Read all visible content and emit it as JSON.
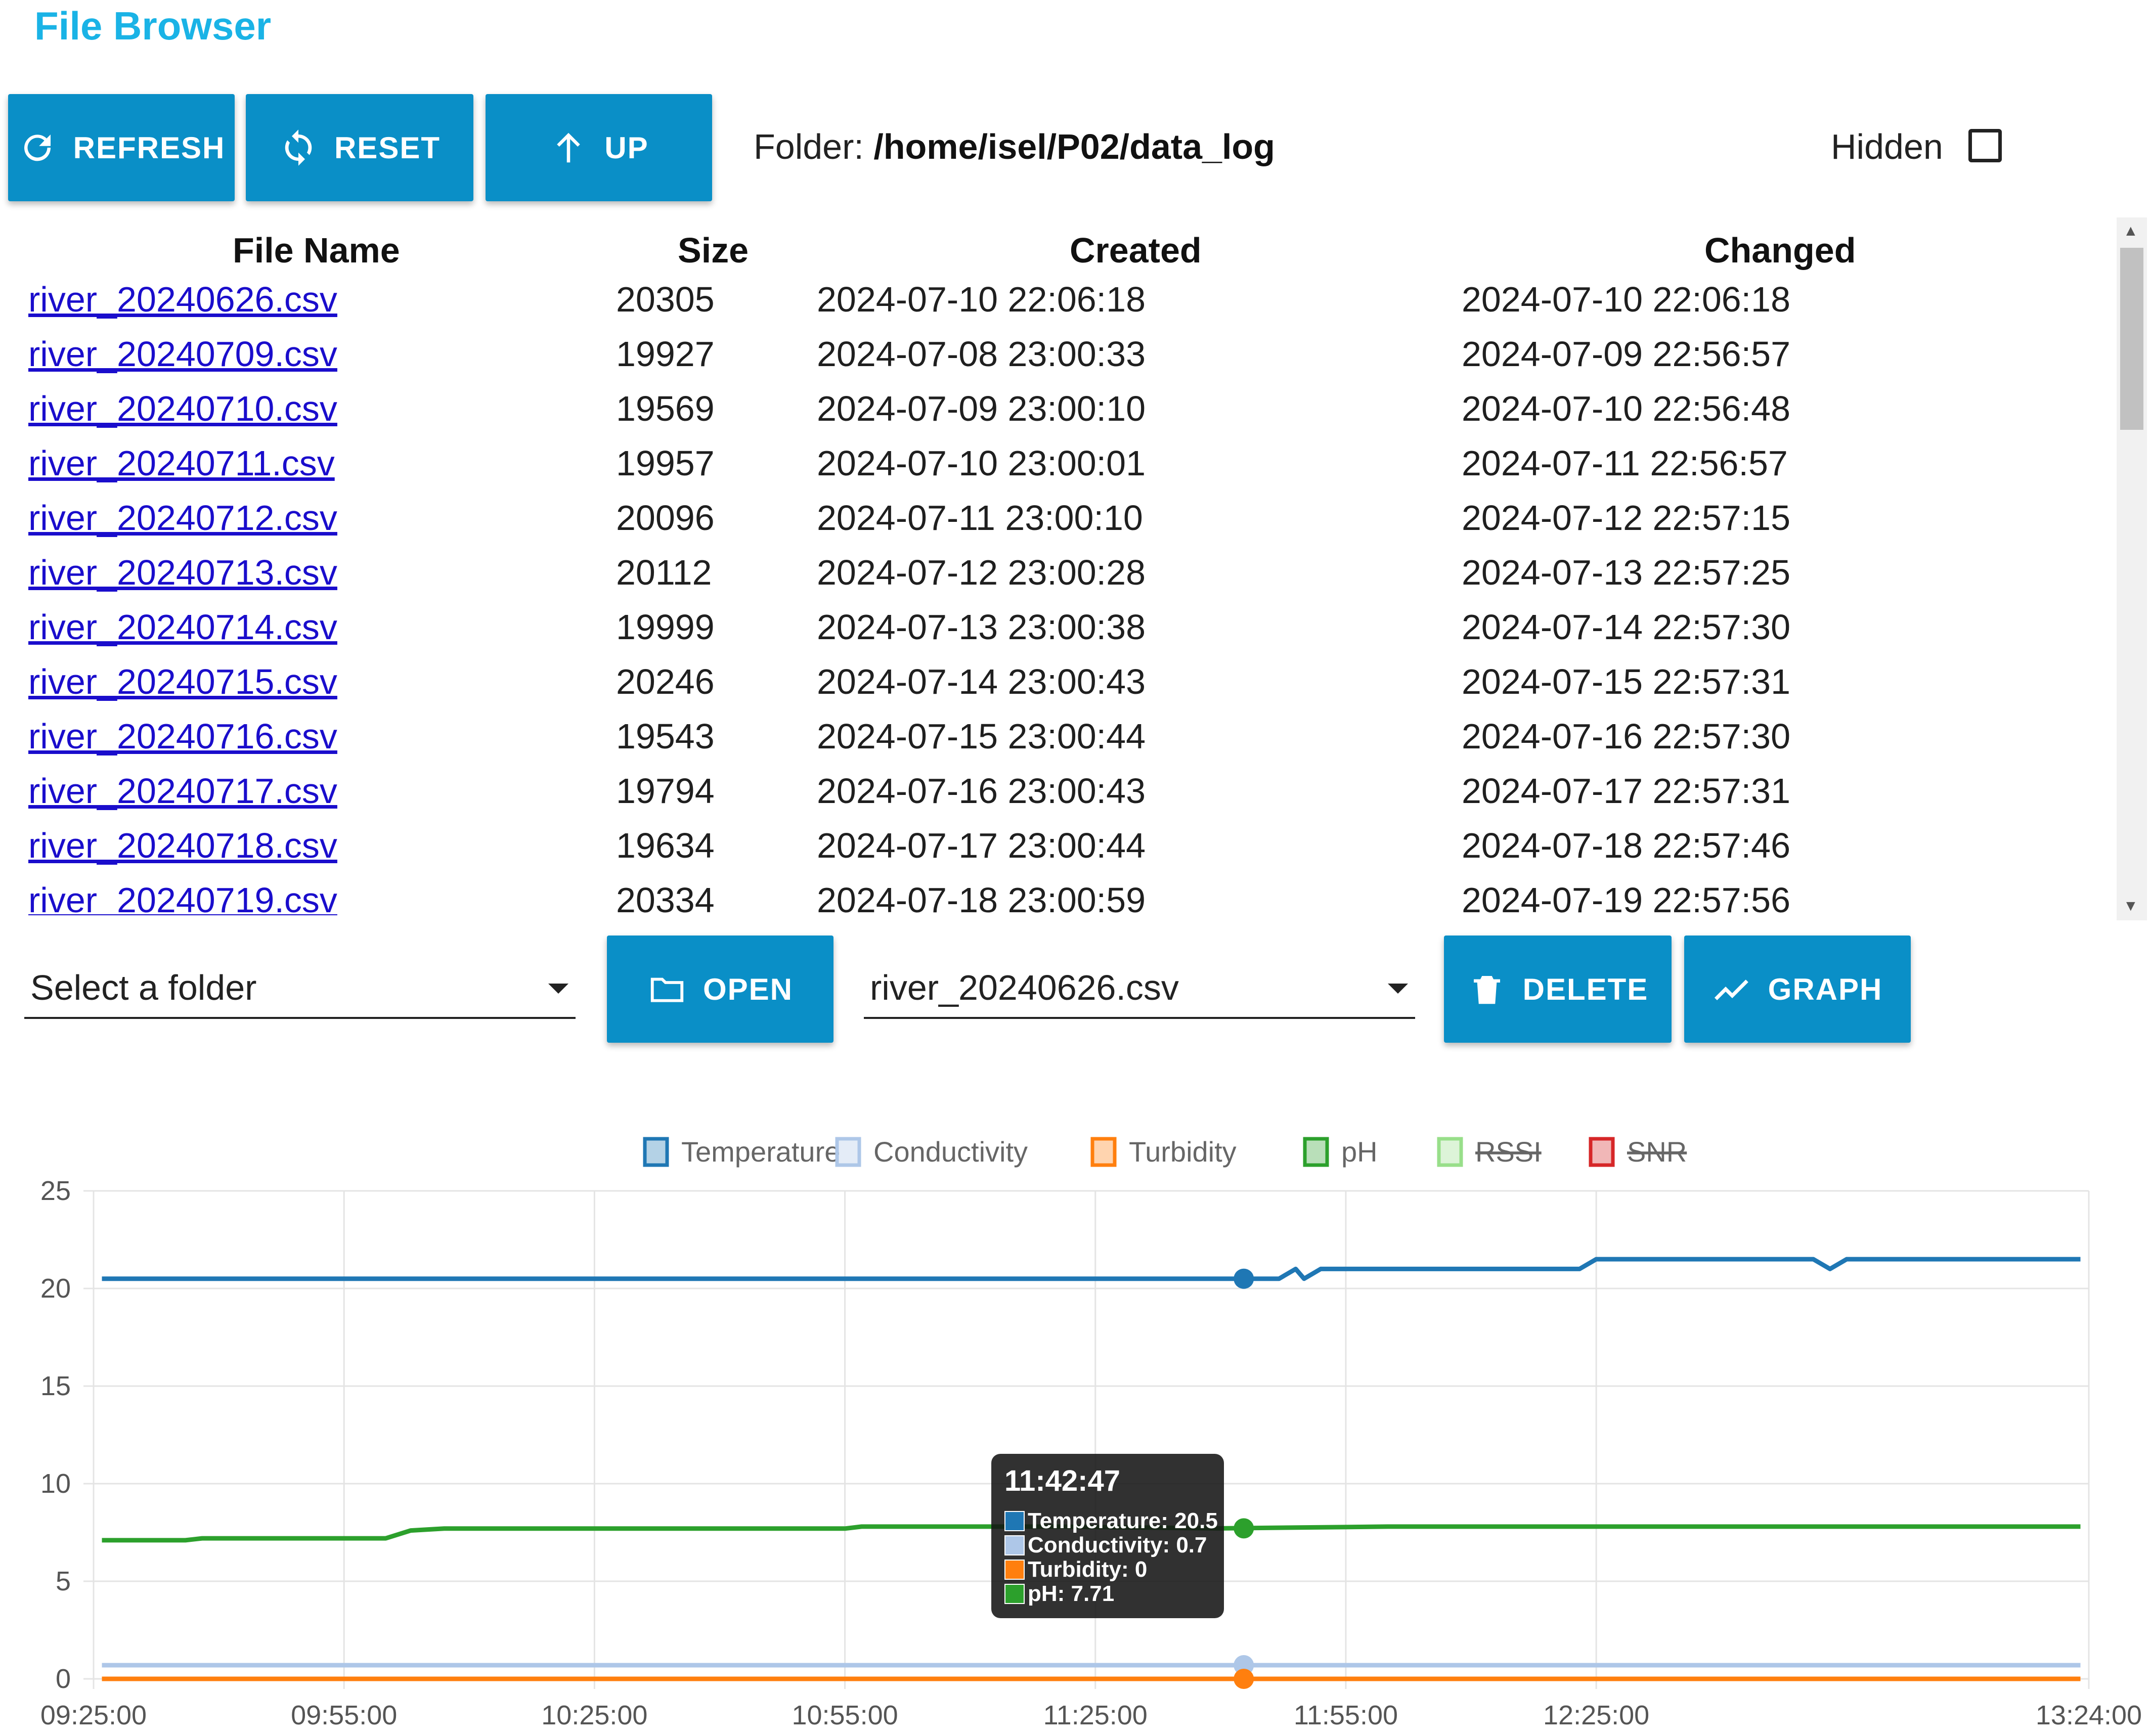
{
  "title": "File Browser",
  "toolbar": {
    "refresh": "REFRESH",
    "reset": "RESET",
    "up": "UP",
    "folder_label": "Folder: ",
    "folder_path": "/home/isel/P02/data_log",
    "hidden_label": "Hidden",
    "hidden_checked": false
  },
  "table": {
    "headers": [
      "File Name",
      "Size",
      "Created",
      "Changed"
    ],
    "rows": [
      [
        "river_20240626.csv",
        "20305",
        "2024-07-10 22:06:18",
        "2024-07-10 22:06:18"
      ],
      [
        "river_20240709.csv",
        "19927",
        "2024-07-08 23:00:33",
        "2024-07-09 22:56:57"
      ],
      [
        "river_20240710.csv",
        "19569",
        "2024-07-09 23:00:10",
        "2024-07-10 22:56:48"
      ],
      [
        "river_20240711.csv",
        "19957",
        "2024-07-10 23:00:01",
        "2024-07-11 22:56:57"
      ],
      [
        "river_20240712.csv",
        "20096",
        "2024-07-11 23:00:10",
        "2024-07-12 22:57:15"
      ],
      [
        "river_20240713.csv",
        "20112",
        "2024-07-12 23:00:28",
        "2024-07-13 22:57:25"
      ],
      [
        "river_20240714.csv",
        "19999",
        "2024-07-13 23:00:38",
        "2024-07-14 22:57:30"
      ],
      [
        "river_20240715.csv",
        "20246",
        "2024-07-14 23:00:43",
        "2024-07-15 22:57:31"
      ],
      [
        "river_20240716.csv",
        "19543",
        "2024-07-15 23:00:44",
        "2024-07-16 22:57:30"
      ],
      [
        "river_20240717.csv",
        "19794",
        "2024-07-16 23:00:43",
        "2024-07-17 22:57:31"
      ],
      [
        "river_20240718.csv",
        "19634",
        "2024-07-17 23:00:44",
        "2024-07-18 22:57:46"
      ],
      [
        "river_20240719.csv",
        "20334",
        "2024-07-18 23:00:59",
        "2024-07-19 22:57:56"
      ]
    ]
  },
  "controls": {
    "folder_select": "Select a folder",
    "open": "OPEN",
    "file_select": "river_20240626.csv",
    "delete": "DELETE",
    "graph": "GRAPH"
  },
  "colors": {
    "button": "#0a8fc7",
    "title": "#1ab3e6",
    "link": "#1a0dcc"
  },
  "chart_data": {
    "type": "line",
    "x_ticks": [
      "09:25:00",
      "09:55:00",
      "10:25:00",
      "10:55:00",
      "11:25:00",
      "11:55:00",
      "12:25:00",
      "13:24:00"
    ],
    "x_tick_minutes": [
      565,
      595,
      625,
      655,
      685,
      715,
      745,
      804
    ],
    "xlim_minutes": [
      565,
      804
    ],
    "ylim": [
      0,
      25
    ],
    "y_ticks": [
      0,
      5,
      10,
      15,
      20,
      25
    ],
    "grid": true,
    "legend_position": "top",
    "series": [
      {
        "name": "Temperature",
        "color": "#1f77b4",
        "hidden": false,
        "points": [
          [
            566,
            20.5
          ],
          [
            702,
            20.5
          ],
          [
            707,
            20.5
          ],
          [
            709,
            21.0
          ],
          [
            710,
            20.5
          ],
          [
            712,
            21.0
          ],
          [
            743,
            21.0
          ],
          [
            745,
            21.5
          ],
          [
            771,
            21.5
          ],
          [
            773,
            21.0
          ],
          [
            775,
            21.5
          ],
          [
            803,
            21.5
          ]
        ]
      },
      {
        "name": "Conductivity",
        "color": "#aec7e8",
        "hidden": false,
        "points": [
          [
            566,
            0.7
          ],
          [
            803,
            0.7
          ]
        ]
      },
      {
        "name": "Turbidity",
        "color": "#ff7f0e",
        "hidden": false,
        "points": [
          [
            566,
            0
          ],
          [
            803,
            0
          ]
        ]
      },
      {
        "name": "pH",
        "color": "#2ca02c",
        "hidden": false,
        "points": [
          [
            566,
            7.1
          ],
          [
            576,
            7.1
          ],
          [
            578,
            7.2
          ],
          [
            600,
            7.2
          ],
          [
            603,
            7.6
          ],
          [
            607,
            7.7
          ],
          [
            655,
            7.7
          ],
          [
            657,
            7.8
          ],
          [
            680,
            7.8
          ],
          [
            700,
            7.71
          ],
          [
            720,
            7.8
          ],
          [
            803,
            7.8
          ]
        ]
      },
      {
        "name": "RSSI",
        "color": "#98df8a",
        "hidden": true,
        "points": []
      },
      {
        "name": "SNR",
        "color": "#d62728",
        "hidden": true,
        "points": []
      }
    ],
    "tooltip": {
      "x_minutes": 702.78,
      "title": "11:42:47",
      "lines": [
        "Temperature: 20.5",
        "Conductivity: 0.7",
        "Turbidity: 0",
        "pH: 7.71"
      ]
    }
  }
}
